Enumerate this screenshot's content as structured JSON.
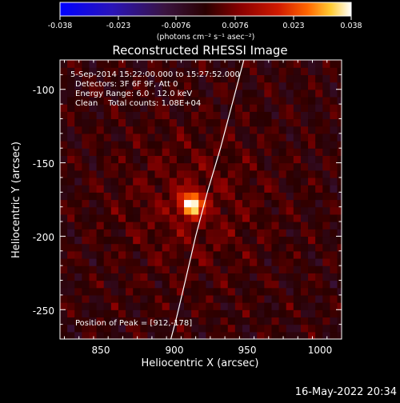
{
  "colorbar": {
    "tick_labels": [
      "-0.038",
      "-0.023",
      "-0.0076",
      "0.0076",
      "0.023",
      "0.038"
    ],
    "units_line": "(photons cm⁻² s⁻¹ asec⁻²)",
    "range": [
      -0.038,
      0.038
    ]
  },
  "chart_data": {
    "type": "heatmap",
    "title": "Reconstructed RHESSI Image",
    "xlabel": "Heliocentric X (arcsec)",
    "ylabel": "Heliocentric Y (arcsec)",
    "xlim": [
      822,
      1015
    ],
    "ylim": [
      -270,
      -80
    ],
    "xticks": [
      850,
      900,
      950,
      1000
    ],
    "yticks": [
      -100,
      -150,
      -200,
      -250
    ],
    "peak": {
      "x": 912,
      "y": -178,
      "value": 0.038
    },
    "value_range": [
      -0.038,
      0.038
    ],
    "limb_curve": [
      [
        948,
        -80
      ],
      [
        940,
        -110
      ],
      [
        932,
        -140
      ],
      [
        923,
        -170
      ],
      [
        915,
        -200
      ],
      [
        908,
        -230
      ],
      [
        902,
        -255
      ],
      [
        898,
        -270
      ]
    ],
    "annotations": {
      "time": "5-Sep-2014 15:22:00.000 to 15:27:52.000",
      "detectors": "Detectors: 3F 6F 9F, Att 0",
      "energy": "Energy Range: 6.0 - 12.0 keV",
      "clean": "Clean    Total counts: 1.08E+04",
      "peak_text": "Position of Peak = [912,-178]"
    }
  },
  "footer": {
    "date": "16-May-2022 20:34"
  }
}
